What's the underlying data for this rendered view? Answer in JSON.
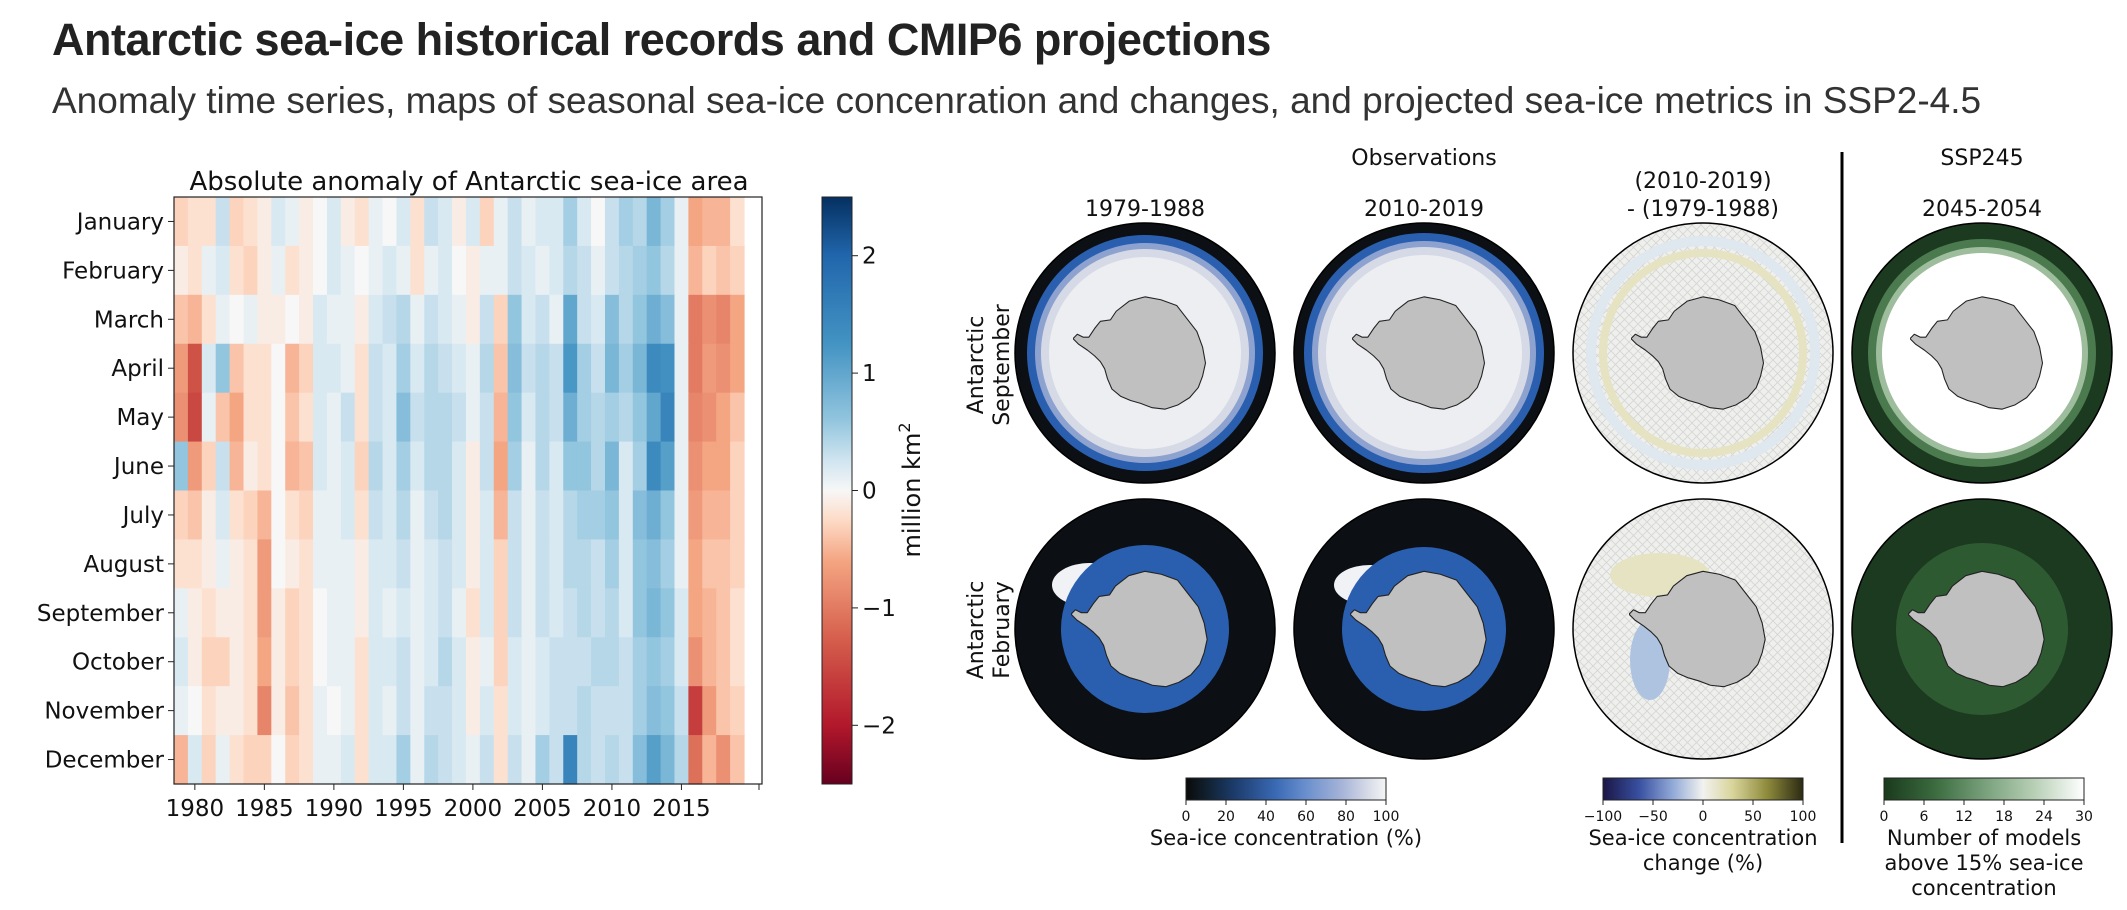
{
  "header": {
    "title": "Antarctic sea-ice historical records and CMIP6 projections",
    "subtitle": "Anomaly time series, maps of seasonal sea-ice concenration and changes, and projected sea-ice metrics in SSP2-4.5"
  },
  "chart_data": [
    {
      "type": "heatmap",
      "title": "Absolute anomaly of Antarctic sea-ice area",
      "rows": [
        "January",
        "February",
        "March",
        "April",
        "May",
        "June",
        "July",
        "August",
        "September",
        "October",
        "November",
        "December"
      ],
      "columns": [
        1979,
        1980,
        1981,
        1982,
        1983,
        1984,
        1985,
        1986,
        1987,
        1988,
        1989,
        1990,
        1991,
        1992,
        1993,
        1994,
        1995,
        1996,
        1997,
        1998,
        1999,
        2000,
        2001,
        2002,
        2003,
        2004,
        2005,
        2006,
        2007,
        2008,
        2009,
        2010,
        2011,
        2012,
        2013,
        2014,
        2015,
        2016,
        2017,
        2018,
        2019
      ],
      "x_tick_labels": [
        "1980",
        "1985",
        "1990",
        "1995",
        "2000",
        "2005",
        "2010",
        "2015"
      ],
      "colorbar": {
        "label": "million km²",
        "range": [
          -2.5,
          2.5
        ],
        "ticks": [
          "2",
          "1",
          "0",
          "−1",
          "−2"
        ],
        "colormap": "RdBu"
      },
      "values": [
        [
          -0.3,
          -0.2,
          -0.2,
          0.3,
          -0.3,
          -0.2,
          -0.1,
          0.2,
          0.1,
          -0.1,
          0.0,
          0.2,
          -0.1,
          -0.2,
          0.1,
          0.0,
          0.2,
          -0.2,
          0.3,
          0.2,
          -0.1,
          0.2,
          -0.3,
          0.1,
          0.3,
          0.1,
          0.2,
          0.2,
          0.5,
          0.2,
          0.0,
          0.3,
          0.5,
          0.4,
          0.8,
          0.5,
          0.1,
          -0.6,
          -0.5,
          -0.5,
          -0.2
        ],
        [
          -0.1,
          -0.2,
          0.1,
          0.2,
          -0.2,
          -0.3,
          -0.1,
          0.1,
          -0.2,
          -0.1,
          0.0,
          0.2,
          0.1,
          0.0,
          0.1,
          0.2,
          0.1,
          -0.2,
          0.1,
          0.2,
          0.0,
          -0.1,
          0.1,
          0.1,
          0.3,
          0.2,
          0.1,
          0.2,
          0.4,
          0.3,
          0.1,
          0.3,
          0.4,
          0.5,
          0.6,
          0.4,
          0.1,
          -0.5,
          -0.3,
          -0.4,
          -0.3
        ],
        [
          -0.4,
          -0.5,
          -0.2,
          0.1,
          0.0,
          0.1,
          -0.1,
          -0.1,
          0.0,
          -0.1,
          0.2,
          0.1,
          0.1,
          -0.1,
          0.2,
          0.3,
          0.4,
          0.1,
          0.3,
          0.2,
          0.1,
          -0.1,
          0.3,
          -0.3,
          0.6,
          0.2,
          0.3,
          0.1,
          1.0,
          0.3,
          0.2,
          0.7,
          0.4,
          0.6,
          0.9,
          0.7,
          0.1,
          -1.0,
          -0.8,
          -0.9,
          -0.6
        ],
        [
          -0.7,
          -1.4,
          0.2,
          0.6,
          -0.4,
          -0.2,
          -0.2,
          0.0,
          -0.5,
          -0.3,
          0.2,
          0.2,
          0.1,
          -0.2,
          0.3,
          0.2,
          0.5,
          0.2,
          0.4,
          0.3,
          0.2,
          0.1,
          0.4,
          -0.4,
          0.7,
          0.3,
          0.4,
          0.3,
          1.2,
          0.5,
          0.3,
          0.8,
          0.5,
          0.8,
          1.4,
          1.3,
          0.1,
          -1.0,
          -0.7,
          -0.8,
          -0.6
        ],
        [
          -0.8,
          -1.5,
          0.1,
          -0.4,
          -0.6,
          -0.2,
          -0.2,
          0.0,
          -0.4,
          -0.2,
          0.2,
          0.1,
          0.3,
          -0.2,
          0.3,
          0.2,
          0.7,
          0.3,
          0.4,
          0.4,
          0.3,
          0.1,
          0.3,
          -0.5,
          0.6,
          0.2,
          0.4,
          0.3,
          0.9,
          0.5,
          0.4,
          0.5,
          0.4,
          0.6,
          1.0,
          1.5,
          0.1,
          -0.9,
          -0.8,
          -0.6,
          -0.4
        ],
        [
          0.6,
          -0.7,
          -0.3,
          0.3,
          -0.5,
          -0.1,
          -0.2,
          0.0,
          -0.5,
          -0.4,
          0.2,
          0.1,
          0.2,
          -0.3,
          0.4,
          0.2,
          0.5,
          0.2,
          0.4,
          0.4,
          0.2,
          -0.1,
          0.3,
          -0.6,
          0.5,
          0.1,
          0.4,
          0.2,
          0.6,
          0.6,
          0.4,
          0.8,
          0.2,
          0.5,
          1.4,
          1.1,
          0.1,
          -0.8,
          -0.6,
          -0.6,
          -0.3
        ],
        [
          -0.3,
          -0.4,
          -0.1,
          0.2,
          -0.2,
          -0.3,
          -0.5,
          0.0,
          -0.2,
          -0.3,
          0.1,
          0.1,
          0.2,
          -0.2,
          0.3,
          0.2,
          0.4,
          0.1,
          0.3,
          0.4,
          0.2,
          -0.1,
          0.2,
          -0.5,
          0.3,
          0.1,
          0.3,
          0.2,
          0.4,
          0.5,
          0.5,
          0.6,
          0.2,
          0.7,
          0.9,
          0.6,
          0.1,
          -0.7,
          -0.5,
          -0.5,
          -0.3
        ],
        [
          -0.2,
          -0.2,
          -0.1,
          0.1,
          -0.1,
          -0.2,
          -0.7,
          0.0,
          -0.1,
          -0.2,
          0.1,
          0.1,
          0.1,
          -0.1,
          0.2,
          0.2,
          0.3,
          0.1,
          0.2,
          0.3,
          0.2,
          -0.1,
          0.2,
          -0.3,
          0.3,
          0.1,
          0.3,
          0.2,
          0.4,
          0.4,
          0.3,
          0.5,
          0.2,
          0.6,
          0.7,
          0.5,
          0.1,
          -0.6,
          -0.4,
          -0.4,
          -0.3
        ],
        [
          0.1,
          -0.1,
          -0.2,
          -0.1,
          -0.1,
          -0.2,
          -0.7,
          -0.1,
          -0.3,
          -0.2,
          0.0,
          0.1,
          0.1,
          -0.1,
          0.2,
          0.1,
          0.2,
          0.1,
          0.2,
          0.3,
          0.1,
          -0.2,
          0.2,
          -0.3,
          0.3,
          0.1,
          0.3,
          0.2,
          0.3,
          0.4,
          0.3,
          0.4,
          0.2,
          0.6,
          0.8,
          0.6,
          0.2,
          -0.6,
          -0.5,
          -0.4,
          -0.2
        ],
        [
          0.2,
          -0.1,
          -0.3,
          -0.3,
          -0.1,
          -0.2,
          -0.6,
          -0.1,
          -0.3,
          -0.2,
          0.0,
          0.1,
          0.1,
          -0.2,
          0.2,
          0.2,
          0.3,
          0.1,
          0.2,
          0.4,
          0.2,
          -0.1,
          0.1,
          -0.3,
          0.2,
          0.1,
          0.2,
          0.3,
          0.3,
          0.3,
          0.4,
          0.4,
          0.3,
          0.5,
          0.6,
          0.5,
          0.2,
          -0.8,
          -0.5,
          -0.4,
          -0.2
        ],
        [
          0.1,
          0.0,
          -0.2,
          -0.1,
          -0.1,
          -0.2,
          -0.9,
          -0.1,
          -0.4,
          -0.2,
          0.1,
          0.0,
          0.1,
          -0.2,
          0.2,
          0.1,
          0.3,
          0.1,
          0.3,
          0.3,
          0.2,
          -0.1,
          0.2,
          -0.2,
          0.2,
          0.1,
          0.2,
          0.3,
          0.3,
          0.4,
          0.3,
          0.3,
          0.3,
          0.5,
          0.7,
          0.6,
          0.3,
          -1.6,
          -0.7,
          -0.4,
          -0.3
        ],
        [
          -0.5,
          0.2,
          -0.3,
          0.1,
          -0.2,
          -0.3,
          -0.3,
          0.0,
          -0.3,
          -0.2,
          0.1,
          0.1,
          0.2,
          -0.2,
          0.2,
          0.2,
          0.5,
          0.1,
          0.4,
          0.3,
          0.2,
          0.1,
          0.3,
          -0.2,
          0.3,
          0.1,
          0.5,
          0.3,
          1.5,
          0.4,
          0.3,
          0.4,
          0.3,
          0.7,
          1.1,
          0.8,
          0.4,
          -1.1,
          -0.5,
          -0.8,
          -0.4
        ]
      ]
    },
    {
      "type": "map-panels",
      "group_title_left": "Observations",
      "group_title_right": "SSP245",
      "column_titles": [
        "1979-1988",
        "2010-2019",
        "(2010-2019)\n- (1979-1988)",
        "2045-2054"
      ],
      "row_labels": [
        "Antarctic September",
        "Antarctic February"
      ],
      "colorbars": [
        {
          "label": "Sea-ice concentration (%)",
          "ticks": [
            "0",
            "20",
            "40",
            "60",
            "80",
            "100"
          ]
        },
        {
          "label": "Sea-ice concentration change (%)",
          "ticks": [
            "−100",
            "−50",
            "0",
            "50",
            "100"
          ]
        },
        {
          "label": "Number of models above 15% sea-ice concentration",
          "ticks": [
            "0",
            "6",
            "12",
            "18",
            "24",
            "30"
          ]
        }
      ]
    }
  ],
  "text": {
    "hm_title": "Absolute anomaly of Antarctic sea-ice area",
    "cb_label": "million km",
    "cb_label_sup": "2",
    "cb_ticks": [
      "2",
      "1",
      "0",
      "−1",
      "−2"
    ],
    "x_ticks": [
      "1980",
      "1985",
      "1990",
      "1995",
      "2000",
      "2005",
      "2010",
      "2015"
    ],
    "months": [
      "January",
      "February",
      "March",
      "April",
      "May",
      "June",
      "July",
      "August",
      "September",
      "October",
      "November",
      "December"
    ],
    "obs_title": "Observations",
    "ssp_title": "SSP245",
    "col_a": "1979-1988",
    "col_b": "2010-2019",
    "col_c1": "(2010-2019)",
    "col_c2": "- (1979-1988)",
    "col_d": "2045-2054",
    "row_sep_1": "Antarctic",
    "row_sep_2": "September",
    "row_feb_1": "Antarctic",
    "row_feb_2": "February",
    "cb1_ticks": [
      "0",
      "20",
      "40",
      "60",
      "80",
      "100"
    ],
    "cb1_label": "Sea-ice concentration (%)",
    "cb2_ticks": [
      "−100",
      "−50",
      "0",
      "50",
      "100"
    ],
    "cb2_label_1": "Sea-ice concentration",
    "cb2_label_2": "change (%)",
    "cb3_ticks": [
      "0",
      "6",
      "12",
      "18",
      "24",
      "30"
    ],
    "cb3_label_1": "Number of models",
    "cb3_label_2": "above 15% sea-ice",
    "cb3_label_3": "concentration"
  },
  "colors": {
    "land": "#c0c0c0",
    "ocean_dark": "#0d1114",
    "ice_blue": "#3068b5",
    "ice_white": "#f4f5f7",
    "diff_bg": "#eef0f0",
    "model_green": "#1c3a20",
    "divider": "#000000"
  }
}
